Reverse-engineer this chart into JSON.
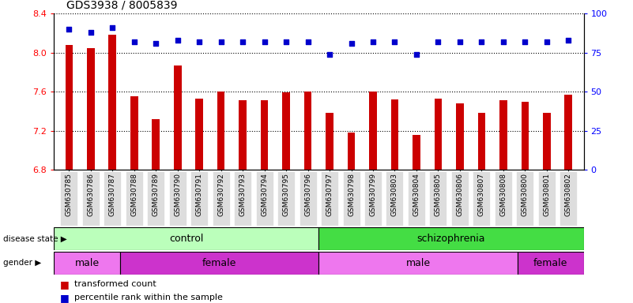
{
  "title": "GDS3938 / 8005839",
  "samples": [
    "GSM630785",
    "GSM630786",
    "GSM630787",
    "GSM630788",
    "GSM630789",
    "GSM630790",
    "GSM630791",
    "GSM630792",
    "GSM630793",
    "GSM630794",
    "GSM630795",
    "GSM630796",
    "GSM630797",
    "GSM630798",
    "GSM630799",
    "GSM630803",
    "GSM630804",
    "GSM630805",
    "GSM630806",
    "GSM630807",
    "GSM630808",
    "GSM630800",
    "GSM630801",
    "GSM630802"
  ],
  "bar_values": [
    8.08,
    8.05,
    8.18,
    7.55,
    7.32,
    7.87,
    7.53,
    7.6,
    7.51,
    7.51,
    7.59,
    7.6,
    7.38,
    7.18,
    7.6,
    7.52,
    7.16,
    7.53,
    7.48,
    7.38,
    7.51,
    7.5,
    7.38,
    7.57
  ],
  "dot_values": [
    90,
    88,
    91,
    82,
    81,
    83,
    82,
    82,
    82,
    82,
    82,
    82,
    74,
    81,
    82,
    82,
    74,
    82,
    82,
    82,
    82,
    82,
    82,
    83
  ],
  "ylim_left": [
    6.8,
    8.4
  ],
  "ylim_right": [
    0,
    100
  ],
  "yticks_left": [
    6.8,
    7.2,
    7.6,
    8.0,
    8.4
  ],
  "yticks_right": [
    0,
    25,
    50,
    75,
    100
  ],
  "bar_color": "#cc0000",
  "dot_color": "#0000cc",
  "bar_bottom": 6.8,
  "disease_state_groups": [
    {
      "label": "control",
      "start": 0,
      "end": 12,
      "color": "#bbffbb"
    },
    {
      "label": "schizophrenia",
      "start": 12,
      "end": 24,
      "color": "#44dd44"
    }
  ],
  "gender_groups": [
    {
      "label": "male",
      "start": 0,
      "end": 3,
      "color": "#ee77ee"
    },
    {
      "label": "female",
      "start": 3,
      "end": 12,
      "color": "#cc33cc"
    },
    {
      "label": "male",
      "start": 12,
      "end": 21,
      "color": "#ee77ee"
    },
    {
      "label": "female",
      "start": 21,
      "end": 24,
      "color": "#cc33cc"
    }
  ],
  "legend_items": [
    {
      "label": "transformed count",
      "color": "#cc0000"
    },
    {
      "label": "percentile rank within the sample",
      "color": "#0000cc"
    }
  ],
  "grid_color": "black",
  "background_color": "#ffffff",
  "tick_bg_color": "#dddddd"
}
